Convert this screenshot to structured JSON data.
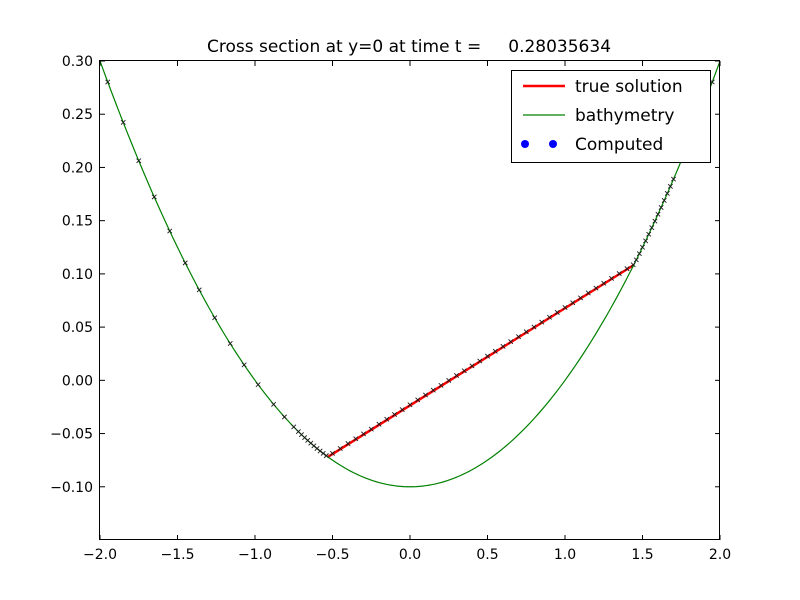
{
  "chart_data": {
    "type": "line",
    "title": "Cross section at y=0 at time t =     0.28035634",
    "xlabel": "",
    "ylabel": "",
    "xlim": [
      -2.0,
      2.0
    ],
    "ylim": [
      -0.15,
      0.3
    ],
    "xticks": [
      "−2.0",
      "−1.5",
      "−1.0",
      "−0.5",
      "0.0",
      "0.5",
      "1.0",
      "1.5",
      "2.0"
    ],
    "xtick_values": [
      -2.0,
      -1.5,
      -1.0,
      -0.5,
      0.0,
      0.5,
      1.0,
      1.5,
      2.0
    ],
    "yticks": [
      "0.30",
      "0.25",
      "0.20",
      "0.15",
      "0.10",
      "0.05",
      "0.00",
      "−0.05",
      "−0.10"
    ],
    "ytick_values": [
      0.3,
      0.25,
      0.2,
      0.15,
      0.1,
      0.05,
      0.0,
      -0.05,
      -0.1
    ],
    "grid": false,
    "legend_position": "top-right",
    "series": [
      {
        "name": "true solution",
        "kind": "line",
        "color": "#ff0000",
        "x": [
          -0.53,
          1.44
        ],
        "y": [
          -0.072,
          0.108
        ]
      },
      {
        "name": "bathymetry",
        "kind": "curve",
        "color": "#008000",
        "formula": "y = 0.1*x^2 - 0.1",
        "x_range": [
          -2.0,
          2.0
        ]
      },
      {
        "name": "Computed",
        "kind": "markers",
        "color": "#0000ff",
        "marker": "x",
        "x": [
          -1.95,
          -1.85,
          -1.75,
          -1.65,
          -1.55,
          -1.45,
          -1.36,
          -1.26,
          -1.16,
          -1.07,
          -0.98,
          -0.88,
          -0.81,
          -0.75,
          -0.72,
          -0.7,
          -0.68,
          -0.66,
          -0.64,
          -0.62,
          -0.6,
          -0.58,
          -0.56,
          -0.54,
          -0.5,
          -0.45,
          -0.4,
          -0.35,
          -0.3,
          -0.25,
          -0.2,
          -0.15,
          -0.1,
          -0.05,
          0.0,
          0.05,
          0.1,
          0.15,
          0.2,
          0.25,
          0.3,
          0.35,
          0.4,
          0.45,
          0.5,
          0.55,
          0.6,
          0.65,
          0.7,
          0.75,
          0.8,
          0.85,
          0.9,
          0.95,
          1.0,
          1.05,
          1.1,
          1.15,
          1.2,
          1.25,
          1.3,
          1.35,
          1.4,
          1.44,
          1.46,
          1.48,
          1.5,
          1.52,
          1.54,
          1.56,
          1.58,
          1.6,
          1.62,
          1.64,
          1.66,
          1.68,
          1.7,
          1.95
        ],
        "y": [
          0.2803,
          0.2423,
          0.2063,
          0.1723,
          0.1403,
          0.1103,
          0.085,
          0.0588,
          0.0346,
          0.0145,
          -0.004,
          -0.0226,
          -0.0344,
          -0.0437,
          -0.0482,
          -0.051,
          -0.0538,
          -0.0564,
          -0.059,
          -0.0616,
          -0.064,
          -0.0664,
          -0.0686,
          -0.0708,
          -0.0686,
          -0.064,
          -0.0594,
          -0.0549,
          -0.0503,
          -0.0458,
          -0.0412,
          -0.0366,
          -0.0321,
          -0.0275,
          -0.0229,
          -0.0184,
          -0.0138,
          -0.0092,
          -0.0047,
          -0.0001,
          0.0045,
          0.009,
          0.0136,
          0.0182,
          0.0227,
          0.0273,
          0.0319,
          0.0364,
          0.041,
          0.0456,
          0.0501,
          0.0547,
          0.0593,
          0.0638,
          0.0684,
          0.0729,
          0.0775,
          0.0821,
          0.0866,
          0.0912,
          0.0958,
          0.1003,
          0.1049,
          0.1086,
          0.1132,
          0.119,
          0.125,
          0.131,
          0.1372,
          0.1434,
          0.1496,
          0.156,
          0.1624,
          0.169,
          0.1756,
          0.1822,
          0.189,
          0.2803
        ]
      }
    ]
  }
}
